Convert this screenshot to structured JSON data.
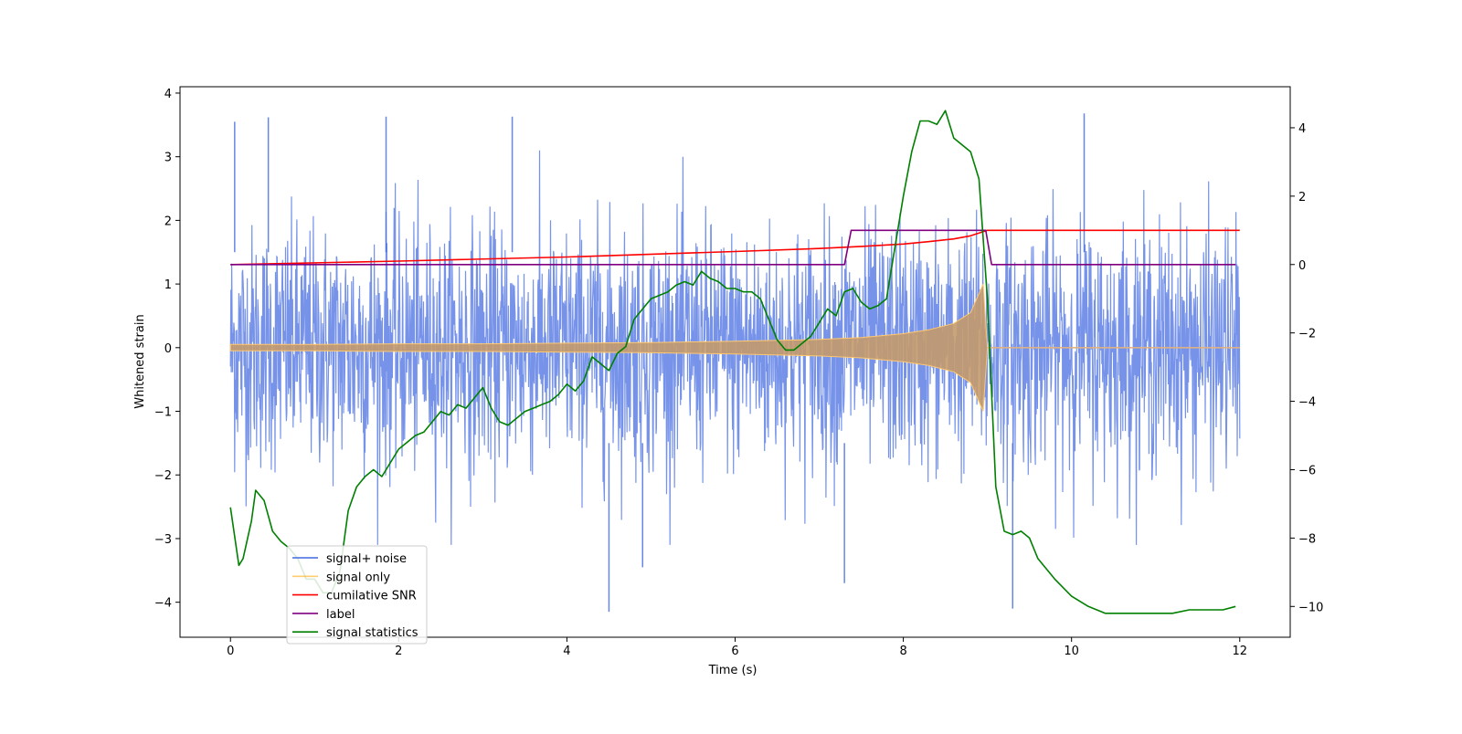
{
  "chart_data": {
    "type": "line",
    "title": "",
    "xlabel": "Time (s)",
    "ylabel": "Whitened strain",
    "y2label": "",
    "xlim": [
      -0.6,
      12.6
    ],
    "ylim": [
      -4.55,
      4.1
    ],
    "y2lim": [
      -10.9,
      5.2
    ],
    "xticks": [
      0,
      2,
      4,
      6,
      8,
      10,
      12
    ],
    "yticks": [
      -4,
      -3,
      -2,
      -1,
      0,
      1,
      2,
      3,
      4
    ],
    "y2ticks": [
      -10,
      -8,
      -6,
      -4,
      -2,
      0,
      2,
      4
    ],
    "legend": {
      "position": "lower-left",
      "entries": [
        {
          "label": "signal+ noise",
          "color": "#4169e1"
        },
        {
          "label": "signal only",
          "color": "#ffa500"
        },
        {
          "label": "cumilative SNR",
          "color": "#ff0000"
        },
        {
          "label": "label",
          "color": "#800080"
        },
        {
          "label": "signal statistics",
          "color": "#008000"
        }
      ]
    },
    "series": [
      {
        "name": "signal+ noise",
        "axis": "left",
        "color": "#4169e1",
        "description_values": "whitened strain noise, band roughly -2.5..2.5 with spikes to about ±3.6",
        "x_range": [
          0,
          12
        ],
        "peaks": [
          {
            "x": 0.05,
            "y": 3.55
          },
          {
            "x": 0.45,
            "y": 3.62
          },
          {
            "x": 1.85,
            "y": 3.63
          },
          {
            "x": 3.35,
            "y": 3.63
          },
          {
            "x": 10.15,
            "y": 3.68
          },
          {
            "x": 4.5,
            "y": -4.15
          },
          {
            "x": 9.3,
            "y": -4.1
          },
          {
            "x": 7.3,
            "y": -3.7
          },
          {
            "x": 4.9,
            "y": -3.45
          }
        ]
      },
      {
        "name": "signal only",
        "axis": "left",
        "color": "#ffa500",
        "x": [
          0,
          1,
          2,
          3,
          4,
          5,
          6,
          7,
          7.5,
          8,
          8.3,
          8.6,
          8.8,
          8.95,
          9.0,
          12
        ],
        "amplitude": [
          0.05,
          0.05,
          0.06,
          0.06,
          0.07,
          0.08,
          0.1,
          0.13,
          0.16,
          0.22,
          0.28,
          0.38,
          0.55,
          1.0,
          0.0,
          0.0
        ]
      },
      {
        "name": "cumilative SNR",
        "axis": "right",
        "color": "#ff0000",
        "x": [
          0,
          2,
          4,
          6,
          7,
          7.5,
          8,
          8.3,
          8.6,
          8.8,
          8.95,
          9.0,
          12
        ],
        "y": [
          0,
          0.1,
          0.22,
          0.38,
          0.47,
          0.53,
          0.6,
          0.67,
          0.75,
          0.84,
          0.96,
          1.0,
          1.0
        ]
      },
      {
        "name": "label",
        "axis": "right",
        "color": "#800080",
        "x": [
          0,
          7.3,
          7.38,
          8.98,
          9.05,
          11.95
        ],
        "y": [
          0,
          0,
          1,
          1,
          0,
          0
        ]
      },
      {
        "name": "signal statistics",
        "axis": "right",
        "color": "#008000",
        "x": [
          0,
          0.1,
          0.15,
          0.25,
          0.3,
          0.4,
          0.5,
          0.6,
          0.7,
          0.8,
          0.9,
          1.0,
          1.1,
          1.2,
          1.3,
          1.4,
          1.5,
          1.6,
          1.7,
          1.8,
          1.9,
          2.0,
          2.1,
          2.2,
          2.3,
          2.4,
          2.5,
          2.6,
          2.7,
          2.8,
          2.9,
          3.0,
          3.1,
          3.2,
          3.3,
          3.4,
          3.5,
          3.6,
          3.7,
          3.8,
          3.9,
          4.0,
          4.1,
          4.2,
          4.3,
          4.4,
          4.5,
          4.6,
          4.7,
          4.8,
          4.9,
          5.0,
          5.1,
          5.2,
          5.3,
          5.4,
          5.5,
          5.6,
          5.7,
          5.8,
          5.9,
          6.0,
          6.1,
          6.2,
          6.3,
          6.4,
          6.5,
          6.6,
          6.7,
          6.8,
          6.9,
          7.0,
          7.1,
          7.2,
          7.3,
          7.4,
          7.5,
          7.6,
          7.7,
          7.8,
          7.9,
          8.0,
          8.1,
          8.2,
          8.3,
          8.4,
          8.5,
          8.6,
          8.7,
          8.8,
          8.9,
          9.0,
          9.1,
          9.2,
          9.3,
          9.4,
          9.5,
          9.6,
          9.8,
          10.0,
          10.2,
          10.4,
          10.6,
          10.8,
          11.0,
          11.2,
          11.4,
          11.6,
          11.8,
          11.95
        ],
        "y": [
          -7.1,
          -8.8,
          -8.6,
          -7.5,
          -6.6,
          -6.9,
          -7.8,
          -8.1,
          -8.3,
          -8.6,
          -9.2,
          -9.2,
          -9.6,
          -9.6,
          -9.0,
          -7.2,
          -6.5,
          -6.2,
          -6.0,
          -6.2,
          -5.8,
          -5.4,
          -5.2,
          -5.0,
          -4.9,
          -4.6,
          -4.3,
          -4.4,
          -4.1,
          -4.2,
          -3.9,
          -3.6,
          -4.2,
          -4.6,
          -4.7,
          -4.5,
          -4.3,
          -4.2,
          -4.1,
          -4.0,
          -3.8,
          -3.5,
          -3.7,
          -3.4,
          -2.7,
          -2.9,
          -3.1,
          -2.6,
          -2.4,
          -1.6,
          -1.3,
          -1.0,
          -0.9,
          -0.8,
          -0.6,
          -0.5,
          -0.6,
          -0.2,
          -0.4,
          -0.5,
          -0.7,
          -0.7,
          -0.8,
          -0.8,
          -1.0,
          -1.6,
          -2.2,
          -2.5,
          -2.5,
          -2.3,
          -2.1,
          -1.7,
          -1.3,
          -1.5,
          -0.8,
          -0.7,
          -1.1,
          -1.3,
          -1.2,
          -1.0,
          0.5,
          2.0,
          3.3,
          4.2,
          4.2,
          4.1,
          4.5,
          3.7,
          3.5,
          3.3,
          2.5,
          -1.0,
          -6.5,
          -7.8,
          -7.9,
          -7.8,
          -8.0,
          -8.6,
          -9.2,
          -9.7,
          -10.0,
          -10.2,
          -10.2,
          -10.2,
          -10.2,
          -10.2,
          -10.1,
          -10.1,
          -10.1,
          -10.0
        ]
      }
    ]
  }
}
